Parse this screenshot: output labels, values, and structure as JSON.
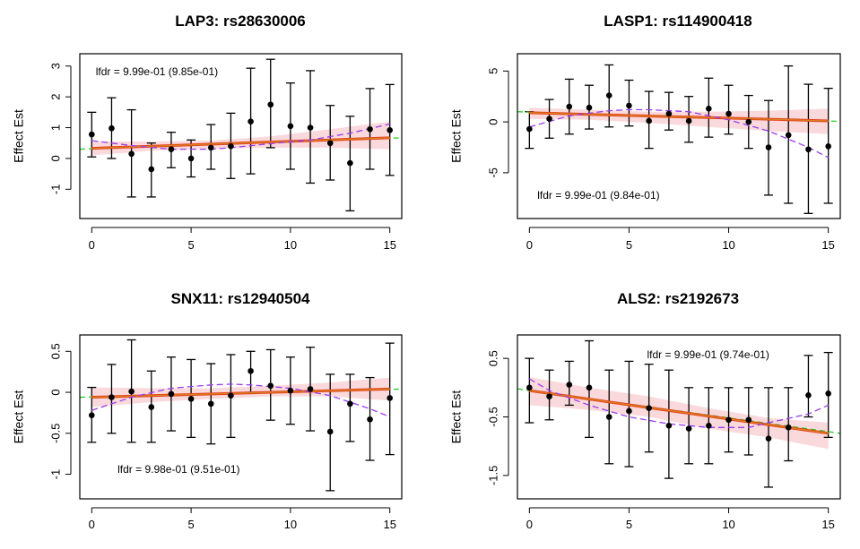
{
  "chart_data": [
    {
      "type": "scatter",
      "title": "LAP3: rs28630006",
      "xlabel": "",
      "ylabel": "Effect Est",
      "xlim": [
        -0.6,
        15.6
      ],
      "ylim": [
        -1.95,
        3.4
      ],
      "xticks": [
        0,
        5,
        10,
        15
      ],
      "yticks": [
        -1,
        0,
        1,
        2,
        3
      ],
      "annotation": "lfdr = 9.99e-01 (9.85e-01)",
      "annotation_pos": [
        0.2,
        2.8
      ],
      "points": {
        "x": [
          0,
          1,
          2,
          3,
          4,
          5,
          6,
          7,
          8,
          9,
          10,
          11,
          12,
          13,
          14,
          15
        ],
        "y": [
          0.78,
          0.98,
          0.15,
          -0.35,
          0.3,
          0.0,
          0.35,
          0.4,
          1.2,
          1.75,
          1.05,
          1.0,
          0.5,
          -0.15,
          0.95,
          0.92
        ],
        "lower": [
          0.05,
          0.0,
          -1.25,
          -1.25,
          -0.3,
          -0.6,
          -0.35,
          -0.65,
          -0.5,
          0.35,
          -0.35,
          -0.8,
          -0.7,
          -1.7,
          -0.35,
          -0.55
        ],
        "upper": [
          1.5,
          1.97,
          1.58,
          0.5,
          0.85,
          0.6,
          1.1,
          1.47,
          2.93,
          3.22,
          2.45,
          2.85,
          1.72,
          1.37,
          2.27,
          2.4
        ]
      },
      "fit_line": {
        "x": [
          0,
          15
        ],
        "y": [
          0.33,
          0.67
        ]
      },
      "null_line": {
        "x": [
          -0.6,
          15.6
        ],
        "y": [
          0.3,
          0.67
        ]
      },
      "band": {
        "x": [
          0,
          3,
          6,
          9,
          12,
          15
        ],
        "lower": [
          0.1,
          0.25,
          0.32,
          0.35,
          0.35,
          0.3
        ],
        "upper": [
          0.55,
          0.55,
          0.58,
          0.72,
          0.95,
          1.2
        ]
      },
      "smooth_curve": {
        "x": [
          0,
          2,
          4,
          6,
          7,
          9,
          11,
          13,
          15
        ],
        "y": [
          0.58,
          0.42,
          0.3,
          0.3,
          0.35,
          0.48,
          0.6,
          0.82,
          1.12
        ]
      }
    },
    {
      "type": "scatter",
      "title": "LASP1: rs114900418",
      "xlabel": "",
      "ylabel": "Effect Est",
      "xlim": [
        -0.6,
        15.6
      ],
      "ylim": [
        -9.5,
        6.7
      ],
      "xticks": [
        0,
        5,
        10,
        15
      ],
      "yticks": [
        -5,
        0,
        5
      ],
      "annotation": "lfdr = 9.99e-01 (9.84e-01)",
      "annotation_pos": [
        0.4,
        -7.3
      ],
      "points": {
        "x": [
          0,
          1,
          2,
          3,
          4,
          5,
          6,
          7,
          8,
          9,
          10,
          11,
          12,
          13,
          14,
          15
        ],
        "y": [
          -0.7,
          0.3,
          1.5,
          1.4,
          2.6,
          1.6,
          0.1,
          0.8,
          0.1,
          1.3,
          0.8,
          0.0,
          -2.5,
          -1.3,
          -2.7,
          -2.4
        ],
        "lower": [
          -2.6,
          -1.6,
          -1.2,
          -0.7,
          -0.5,
          -0.4,
          -2.6,
          -0.8,
          -2.0,
          -1.5,
          -1.2,
          -2.6,
          -7.2,
          -8.0,
          -9.0,
          -8.0
        ],
        "upper": [
          1.0,
          2.2,
          4.2,
          3.6,
          5.6,
          4.1,
          3.0,
          2.9,
          2.5,
          4.3,
          3.6,
          2.6,
          2.1,
          5.5,
          3.7,
          3.3
        ]
      },
      "fit_line": {
        "x": [
          0,
          15
        ],
        "y": [
          0.9,
          0.1
        ]
      },
      "null_line": {
        "x": [
          -0.6,
          15.6
        ],
        "y": [
          1.0,
          0.05
        ]
      },
      "band": {
        "x": [
          0,
          3,
          6,
          9,
          12,
          15
        ],
        "lower": [
          0.3,
          0.2,
          -0.1,
          -0.5,
          -0.9,
          -1.2
        ],
        "upper": [
          1.4,
          1.2,
          1.0,
          1.0,
          1.1,
          1.3
        ]
      },
      "smooth_curve": {
        "x": [
          0,
          2,
          4,
          5,
          6,
          8,
          10,
          12,
          14,
          15
        ],
        "y": [
          -0.5,
          0.6,
          1.1,
          1.2,
          1.2,
          1.0,
          0.2,
          -0.9,
          -2.5,
          -3.5
        ]
      }
    },
    {
      "type": "scatter",
      "title": "SNX11: rs12940504",
      "xlabel": "",
      "ylabel": "Effect Est",
      "xlim": [
        -0.6,
        15.6
      ],
      "ylim": [
        -1.3,
        0.7
      ],
      "xticks": [
        0,
        5,
        10,
        15
      ],
      "yticks": [
        -1.0,
        -0.5,
        0.0,
        0.5
      ],
      "annotation": "lfdr = 9.98e-01 (9.51e-01)",
      "annotation_pos": [
        1.3,
        -0.95
      ],
      "points": {
        "x": [
          0,
          1,
          2,
          3,
          4,
          5,
          6,
          7,
          8,
          9,
          10,
          11,
          12,
          13,
          14,
          15
        ],
        "y": [
          -0.28,
          -0.06,
          0.01,
          -0.18,
          -0.02,
          -0.08,
          -0.14,
          -0.04,
          0.26,
          0.08,
          0.02,
          0.04,
          -0.48,
          -0.14,
          -0.33,
          -0.07
        ],
        "lower": [
          -0.61,
          -0.5,
          -0.61,
          -0.61,
          -0.47,
          -0.55,
          -0.63,
          -0.55,
          0.0,
          -0.34,
          -0.39,
          -0.47,
          -1.2,
          -0.6,
          -0.83,
          -0.76
        ],
        "upper": [
          0.06,
          0.34,
          0.64,
          0.26,
          0.43,
          0.4,
          0.35,
          0.46,
          0.5,
          0.52,
          0.43,
          0.55,
          0.22,
          0.22,
          0.18,
          0.6
        ]
      },
      "fit_line": {
        "x": [
          0,
          15
        ],
        "y": [
          -0.06,
          0.04
        ]
      },
      "null_line": {
        "x": [
          -0.6,
          15.6
        ],
        "y": [
          -0.06,
          0.04
        ]
      },
      "band": {
        "x": [
          0,
          3,
          6,
          9,
          12,
          15
        ],
        "lower": [
          -0.18,
          -0.12,
          -0.08,
          -0.05,
          -0.05,
          -0.1
        ],
        "upper": [
          0.06,
          0.05,
          0.05,
          0.08,
          0.12,
          0.18
        ]
      },
      "smooth_curve": {
        "x": [
          0,
          2,
          4,
          6,
          7,
          8,
          10,
          12,
          14,
          15
        ],
        "y": [
          -0.22,
          -0.06,
          0.05,
          0.09,
          0.1,
          0.09,
          0.05,
          -0.04,
          -0.2,
          -0.3
        ]
      }
    },
    {
      "type": "scatter",
      "title": "ALS2: rs2192673",
      "xlabel": "",
      "ylabel": "Effect Est",
      "xlim": [
        -0.6,
        15.6
      ],
      "ylim": [
        -1.9,
        0.9
      ],
      "xticks": [
        0,
        5,
        10,
        15
      ],
      "yticks": [
        -1.5,
        -0.5,
        0.5
      ],
      "annotation": "lfdr = 9.99e-01 (9.74e-01)",
      "annotation_pos": [
        5.9,
        0.55
      ],
      "points": {
        "x": [
          0,
          1,
          2,
          3,
          4,
          5,
          6,
          7,
          8,
          9,
          10,
          11,
          12,
          13,
          14,
          15
        ],
        "y": [
          0.0,
          -0.15,
          0.05,
          0.0,
          -0.5,
          -0.4,
          -0.35,
          -0.65,
          -0.7,
          -0.65,
          -0.55,
          -0.55,
          -0.87,
          -0.68,
          -0.13,
          -0.1
        ],
        "lower": [
          -0.6,
          -0.55,
          -0.3,
          -0.85,
          -1.3,
          -1.35,
          -1.1,
          -1.55,
          -1.3,
          -1.3,
          -1.1,
          -1.15,
          -1.7,
          -1.25,
          -0.5,
          -0.85
        ],
        "upper": [
          0.5,
          0.3,
          0.45,
          0.8,
          0.3,
          0.45,
          0.4,
          0.3,
          0.0,
          0.0,
          0.0,
          0.0,
          0.0,
          0.0,
          0.55,
          0.6
        ]
      },
      "fit_line": {
        "x": [
          0,
          15
        ],
        "y": [
          -0.05,
          -0.78
        ]
      },
      "null_line": {
        "x": [
          -0.6,
          15.6
        ],
        "y": [
          -0.02,
          -0.78
        ]
      },
      "band": {
        "x": [
          0,
          3,
          6,
          9,
          12,
          15
        ],
        "lower": [
          -0.3,
          -0.38,
          -0.5,
          -0.7,
          -0.85,
          -1.05
        ],
        "upper": [
          0.18,
          0.0,
          -0.15,
          -0.35,
          -0.52,
          -0.6
        ]
      },
      "smooth_curve": {
        "x": [
          0,
          1,
          3,
          5,
          7,
          9,
          11,
          12,
          14,
          15
        ],
        "y": [
          0.15,
          -0.05,
          -0.3,
          -0.5,
          -0.62,
          -0.68,
          -0.68,
          -0.6,
          -0.45,
          -0.3
        ]
      }
    }
  ]
}
